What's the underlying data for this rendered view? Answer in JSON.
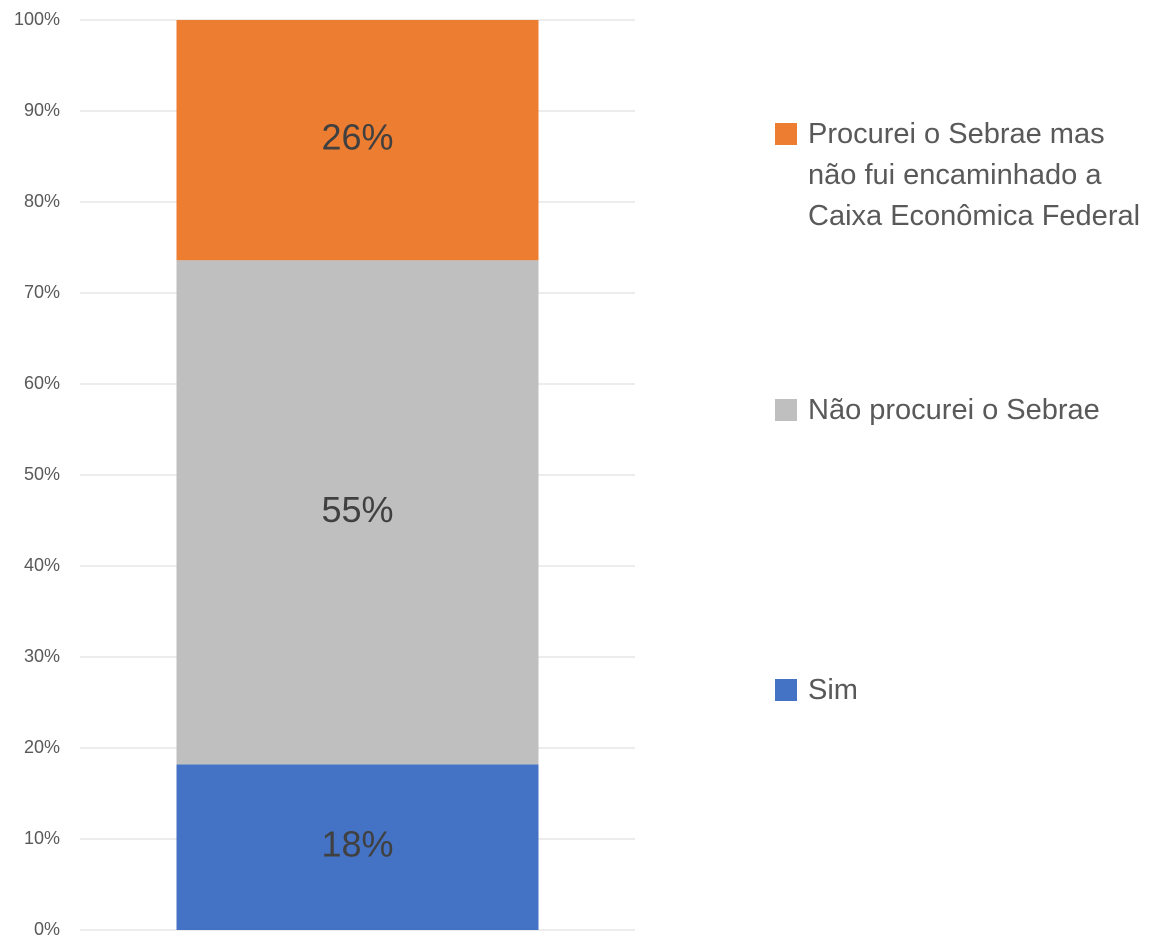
{
  "chart_data": {
    "type": "stacked_bar",
    "categories": [
      null
    ],
    "series": [
      {
        "name": "Sim",
        "color": "#4472c4",
        "values": [
          18.2
        ],
        "value_labels": [
          "18%"
        ]
      },
      {
        "name": "Não procurei o Sebrae",
        "color": "#bfbfbf",
        "values": [
          55.4
        ],
        "value_labels": [
          "55%"
        ]
      },
      {
        "name": "Procurei o Sebrae mas não fui encaminhado a Caixa Econômica Federal",
        "color": "#ed7d31",
        "values": [
          26.4
        ],
        "value_labels": [
          "26%"
        ]
      }
    ],
    "ylim": [
      0,
      100
    ],
    "yticks": [
      {
        "value": 0,
        "label": "0%"
      },
      {
        "value": 10,
        "label": "10%"
      },
      {
        "value": 20,
        "label": "20%"
      },
      {
        "value": 30,
        "label": "30%"
      },
      {
        "value": 40,
        "label": "40%"
      },
      {
        "value": 50,
        "label": "50%"
      },
      {
        "value": 60,
        "label": "60%"
      },
      {
        "value": 70,
        "label": "70%"
      },
      {
        "value": 80,
        "label": "80%"
      },
      {
        "value": 90,
        "label": "90%"
      },
      {
        "value": 100,
        "label": "100%"
      }
    ],
    "grid": true,
    "legend": "right"
  }
}
